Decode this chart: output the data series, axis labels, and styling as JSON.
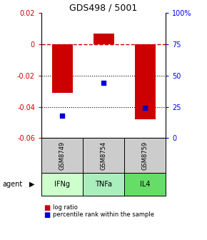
{
  "title": "GDS498 / 5001",
  "samples": [
    "GSM8749",
    "GSM8754",
    "GSM8759"
  ],
  "agents": [
    "IFNg",
    "TNFa",
    "IL4"
  ],
  "log_ratios": [
    -0.031,
    0.007,
    -0.048
  ],
  "percentile_ranks": [
    18,
    44,
    24
  ],
  "ylim_left": [
    -0.06,
    0.02
  ],
  "ylim_right": [
    0,
    100
  ],
  "left_ticks": [
    0.02,
    0,
    -0.02,
    -0.04,
    -0.06
  ],
  "right_ticks": [
    100,
    75,
    50,
    25,
    0
  ],
  "bar_color": "#cc0000",
  "dot_color": "#0000cc",
  "agent_colors": [
    "#ccffcc",
    "#aaeebb",
    "#66dd66"
  ],
  "sample_bg": "#cccccc",
  "zero_line_color": "#cc0000",
  "legend_bar_label": "log ratio",
  "legend_dot_label": "percentile rank within the sample",
  "figsize": [
    2.9,
    3.36
  ],
  "dpi": 100
}
